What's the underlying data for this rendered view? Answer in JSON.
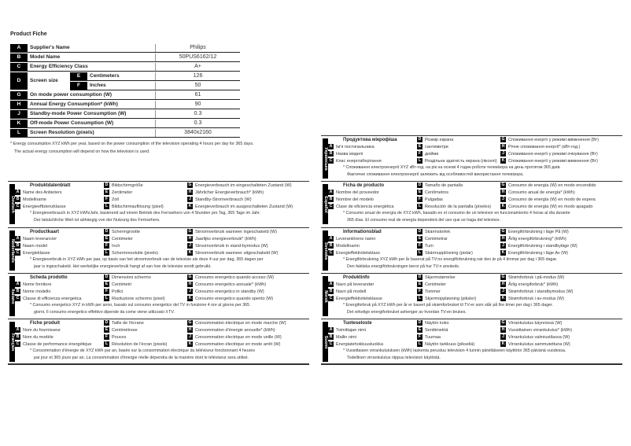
{
  "title": "Product Fiche",
  "table": [
    {
      "letter": "A",
      "label": "Supplier's Name",
      "value": "Philips"
    },
    {
      "letter": "B",
      "label": "Model Name",
      "value": "50PUS6162/12"
    },
    {
      "letter": "C",
      "label": "Energy Efficiency Class",
      "value": "A+"
    },
    {
      "letter": "D",
      "label": "Screen size",
      "sub": [
        {
          "letter": "E",
          "label": "Centimeters",
          "value": "126"
        },
        {
          "letter": "F",
          "label": "Inches",
          "value": "50"
        }
      ]
    },
    {
      "letter": "G",
      "label": "On mode power consumption (W)",
      "value": "61"
    },
    {
      "letter": "H",
      "label": "Annual Energy Consumption* (kWh)",
      "value": "90"
    },
    {
      "letter": "J",
      "label": "Standby-mode Power Consumption (W)",
      "value": "0.3"
    },
    {
      "letter": "K",
      "label": "Off-mode Power Consumption (W)",
      "value": "0.3"
    },
    {
      "letter": "L",
      "label": "Screen Resolution (pixels)",
      "value": "3840x2160"
    }
  ],
  "footnote": [
    "* Energy consumption XYZ kWh per year, based on the power consumption of the television operating 4 hours per day for 365 days.",
    "The actual energy consumption will depend on how the television is used."
  ],
  "languages": [
    {
      "name": "Deutsch",
      "title": "Produktdatenblatt",
      "A": "Name des Anbieters",
      "B": "Modellname",
      "C": "Energieeffizienzklasse",
      "D": "Bildschirmgröße",
      "E": "Zentimeter",
      "F": "Zoll",
      "L": "Bildschirmauflösung (pixel)",
      "G": "Energieverbrauch im eingeschalteten Zustand (W)",
      "H": "Jährlicher Energieverbrauch* (kWh)",
      "J": "Standby-Stromverbrauch (W)",
      "K": "Energieverbrauch im ausgeschalteten Zustand (W)",
      "note": [
        "* Energieverbrauch in XYZ kWh/Jahr, basierend auf einem Betrieb des Fernsehers von 4 Stunden pro Tag, 365 Tage im Jahr.",
        "Der tatsächliche Wert ist abhängig von der Nutzung des Fernsehers."
      ]
    },
    {
      "name": "Nederlands",
      "title": "Productkaart",
      "A": "Naam leverancier",
      "B": "Naam model",
      "C": "Energieklasse",
      "D": "Schermgrootte",
      "E": "Centimeter",
      "F": "Inch",
      "L": "Schermresolutie (pixels)",
      "G": "Stroomverbruik wanneer ingeschakeld (W)",
      "H": "Jaarlijks energieverbruik* (kWh)",
      "J": "Stroomverbruik in stand-bymodus (W)",
      "K": "Stroomverbruik wanneer uitgeschakeld (W)",
      "note": [
        "* Energieverbruik in XYZ kWh per jaar, op basis van het stroomverbruik van de televisie als deze 4 uur per dag, 365 dagen per",
        "jaar is ingeschakeld. Het werkelijke energieverbruik hangt af van hoe de televisie wordt gebruikt."
      ]
    },
    {
      "name": "Italiano",
      "title": "Scheda prodotto",
      "A": "Nome fornitore",
      "B": "Nome modello",
      "C": "Classe di efficienza energetica",
      "D": "Dimensioni schermo",
      "E": "Centimetri",
      "F": "Pollici",
      "L": "Risoluzione schermo (pixel)",
      "G": "Consumo energetico quando acceso (W)",
      "H": "Consumo energetico annuale* (kWh)",
      "J": "Consumo energetico in standby (W)",
      "K": "Consumo energetico quando spento (W)",
      "note": [
        "* Consumo energetico XYZ in kWh per anno, basato sul consumo energetico del TV in funzione 4 ore al giorno per 365",
        "giorni. Il consumo energetico effettivo dipende da come viene utilizzato il TV."
      ]
    },
    {
      "name": "Français",
      "title": "Fiche produit",
      "A": "Nom du fournisseur",
      "B": "Nom du modèle",
      "C": "Classe de performance énergétique",
      "D": "Taille de l'écrane",
      "E": "Centimètrese",
      "F": "Pouces",
      "L": "Résolution de l'écran (pixels)",
      "G": "Consommation électrique en mode marche (W)",
      "H": "Consommation d'énergie annuelle* (kWh)",
      "J": "Consommation électrique en mode veille (W)",
      "K": "Consommation électrique en mode arrêt (W)",
      "note": [
        "* Consommation d'énergie de XYZ kWh par an, basée sur la consommation électrique du téléviseur fonctionnant 4 heures",
        "par jour et 365 jours par an. La consommation d'énergie réelle dépendra de la manière dont le téléviseur sera utilisé."
      ]
    },
    {
      "name": "Українська",
      "title": "Продуктова мікрофіша",
      "A": "Ім'я постачальника",
      "B": "Назва моделі",
      "C": "Клас енергозберігання",
      "D": "Розмір екрана",
      "E": "сантиметри",
      "F": "дюйми",
      "L": "Роздільна здатність екрана (пікселі)",
      "G": "Споживання енергії у режимі ввімкнення (Вт)",
      "H": "Річне споживання енергії* (кВт-год.)",
      "J": "Споживання енергії у режимі очікування (Вт)",
      "K": "Споживання енергії у режимі вимкнення (Вт)",
      "note": [
        "* Споживання електроенергії XYZ кВт-год. на рік на основі 4 годин роботи телевізора на день протягом 365 днів.",
        "Фактичне споживання електроенергії залежить від особливостей використання телевізора."
      ]
    },
    {
      "name": "Español",
      "title": "Ficha de producto",
      "A": "Nombre del proveedor",
      "B": "Nombre del modelo",
      "C": "Clase de eficiencia energética",
      "D": "Tamaño de pantalla",
      "E": "Centímetros",
      "F": "Pulgadas",
      "L": "Resolución de la pantalla (píxeles)",
      "G": "Consumo de energía (W) en modo encendido",
      "H": "Consumo anual de energía* (kWh)",
      "J": "Consumo de energía (W) en modo de espera",
      "K": "Consumo de energía (W) en modo apagado",
      "note": [
        "* Consumo anual de energía de XYZ kWh, basado en el consumo de un televisor en funcionamiento 4 horas al día durante",
        "365 días. El consumo real de energía dependerá del uso que se haga del televisor."
      ]
    },
    {
      "name": "Svenska",
      "title": "Informationsblad",
      "A": "Leverantörens namn",
      "B": "Modellnamn",
      "C": "Energieffektivitetsklass",
      "D": "Skärmstorlek",
      "E": "Centimetrar",
      "F": "Tum",
      "L": "Skärmupplösning (pixlar)",
      "G": "Energiförbrukning i läge På (W)",
      "H": "Årlig energiförbrukning* (kWh)",
      "J": "Energiförbrukning i standbyläge (W)",
      "K": "Energiförbrukning i läge Av (W)",
      "note": [
        "* Energiförbrukning XYZ kWh per år baserat på TV:ns energiförbrukning när den är på 4 timmar per dag i 365 dagar.",
        "Den faktiska energiförbrukningen beror på hur TV:n används."
      ]
    },
    {
      "name": "Norsk",
      "title": "Produktinfo",
      "A": "Navn på leverandør",
      "B": "Navn på modell",
      "C": "Energieffektivitetsklasse",
      "D": "Skjermstørrelse",
      "E": "Centimeter",
      "F": "Tommer",
      "L": "Skjermoppløsning (piksler)",
      "G": "Strømforbruk i på-modus (W)",
      "H": "Årlig energiforbruk* (kWh)",
      "J": "Strømforbruk i standbymodus (W)",
      "K": "Strømforbruk i av-modus (W)",
      "note": [
        "* Energiforbruk på XYZ kWh per år er basert på strømforbruket til TV-er som står på fire timer per dag i 365 dager.",
        "Det virkelige energiforbruket avhenger av hvordan TV-en brukes."
      ]
    },
    {
      "name": "Suomi",
      "title": "Tuoteseloste",
      "A": "Toimittajan nimi",
      "B": "Mallin nimi",
      "C": "Energiatehokkuusluokka",
      "D": "Näytön koko",
      "E": "Senttimetriä",
      "F": "Tuumaa",
      "L": "Näytön tarkkuus (pikseliä)",
      "G": "Virrankulutus käynnissä (W)",
      "H": "Vuosittainen virrankulutus* (kWh)",
      "J": "Virrankulutus valmiustilassa (W)",
      "K": "Virrankulutus sammutettuna (W)",
      "note": [
        "* Vuosittaisen virrankulutuksen (kWh) laskenta perustuu television 4 tunnin päivittäiseen käyttöön 365 päivänä vuodessa.",
        "Todellinen virrankulutus riippuu television käytöstä."
      ]
    }
  ]
}
